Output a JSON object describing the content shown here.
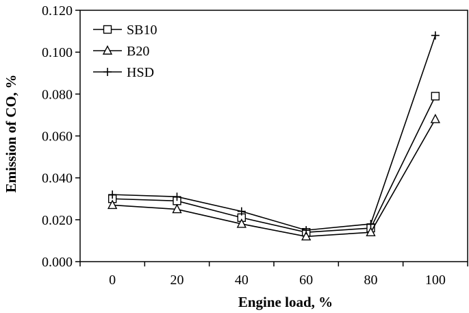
{
  "chart_data": {
    "type": "line",
    "title": "",
    "xlabel": "Engine load, %",
    "ylabel": "Emission of CO, %",
    "categories": [
      "0",
      "20",
      "40",
      "60",
      "80",
      "100"
    ],
    "ylim": [
      0,
      0.12
    ],
    "yticks": [
      "0.000",
      "0.020",
      "0.040",
      "0.060",
      "0.080",
      "0.100",
      "0.120"
    ],
    "grid": false,
    "legend_position": "top-left",
    "series": [
      {
        "name": "SB10",
        "marker": "square",
        "values": [
          0.03,
          0.029,
          0.021,
          0.014,
          0.016,
          0.079
        ]
      },
      {
        "name": "B20",
        "marker": "triangle",
        "values": [
          0.027,
          0.025,
          0.018,
          0.012,
          0.014,
          0.068
        ]
      },
      {
        "name": "HSD",
        "marker": "plus",
        "values": [
          0.032,
          0.031,
          0.024,
          0.015,
          0.018,
          0.108
        ]
      }
    ],
    "colors": {
      "line": "#000000",
      "background": "#ffffff"
    }
  }
}
